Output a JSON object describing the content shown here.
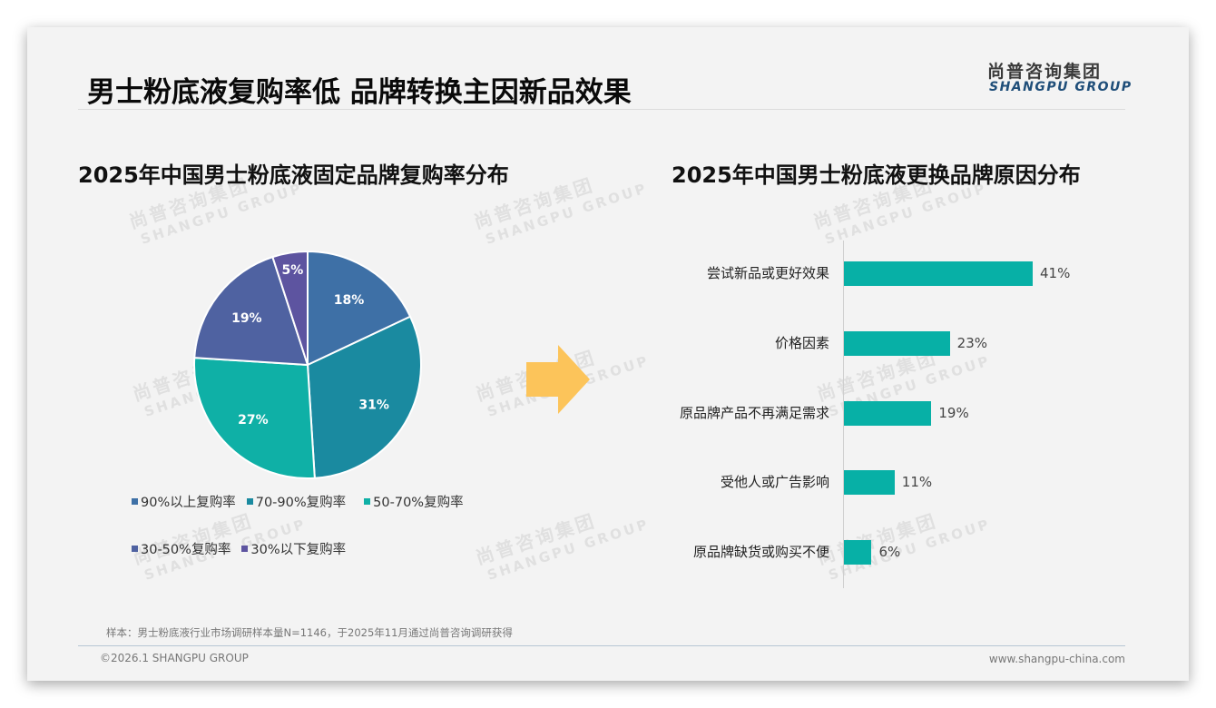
{
  "header": {
    "title": "男士粉底液复购率低 品牌转换主因新品效果",
    "logo_cn": "尚普咨询集团",
    "logo_en": "SHANGPU GROUP"
  },
  "watermark": {
    "cn": "尚普咨询集团",
    "en": "SHANGPU GROUP"
  },
  "colors": {
    "slice_90_plus": "#3e70a6",
    "slice_70_90": "#1a8aa0",
    "slice_50_70": "#0fb0a6",
    "slice_30_50": "#4f62a1",
    "slice_below_30": "#5d54a0",
    "bar": "#07b0a6",
    "arrow": "#fcc45a"
  },
  "chart_data": [
    {
      "type": "pie",
      "title": "2025年中国男士粉底液固定品牌复购率分布",
      "categories": [
        "90%以上复购率",
        "70-90%复购率",
        "50-70%复购率",
        "30-50%复购率",
        "30%以下复购率"
      ],
      "values": [
        18,
        31,
        27,
        19,
        5
      ],
      "labels": [
        "18%",
        "31%",
        "27%",
        "19%",
        "5%"
      ],
      "unit": "%",
      "start_angle": "12 o'clock, clockwise",
      "legend_position": "bottom"
    },
    {
      "type": "bar",
      "orientation": "horizontal",
      "title": "2025年中国男士粉底液更换品牌原因分布",
      "categories": [
        "尝试新品或更好效果",
        "价格因素",
        "原品牌产品不再满足需求",
        "受他人或广告影响",
        "原品牌缺货或购买不便"
      ],
      "values": [
        41,
        23,
        19,
        11,
        6
      ],
      "labels": [
        "41%",
        "23%",
        "19%",
        "11%",
        "6%"
      ],
      "unit": "%",
      "grid": false,
      "xlim": [
        0,
        50
      ]
    }
  ],
  "footer": {
    "source": "样本：男士粉底液行业市场调研样本量N=1146，于2025年11月通过尚普咨询调研获得",
    "copyright": "©2026.1 SHANGPU GROUP",
    "website": "www.shangpu-china.com"
  }
}
